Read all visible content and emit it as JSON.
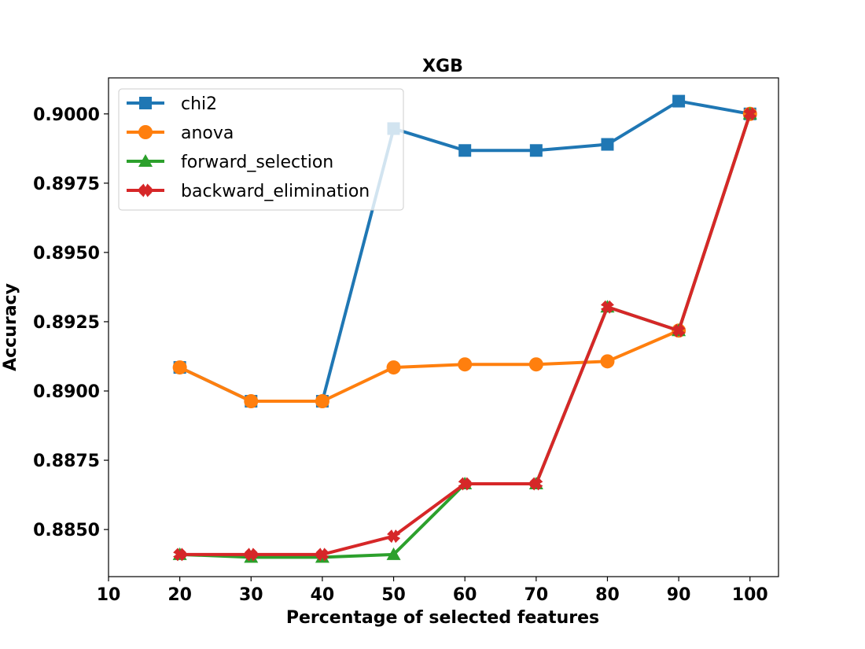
{
  "chart_data": {
    "type": "line",
    "title": "XGB",
    "xlabel": "Percentage of selected features",
    "ylabel": "Accuracy",
    "xlim": [
      10,
      104
    ],
    "ylim": [
      0.8833,
      0.9013
    ],
    "xticks": [
      10,
      20,
      30,
      40,
      50,
      60,
      70,
      80,
      90,
      100
    ],
    "xtick_labels": [
      "10",
      "20",
      "30",
      "40",
      "50",
      "60",
      "70",
      "80",
      "90",
      "100"
    ],
    "yticks": [
      0.885,
      0.8875,
      0.89,
      0.8925,
      0.895,
      0.8975,
      0.9
    ],
    "ytick_labels": [
      "0.8850",
      "0.8875",
      "0.8900",
      "0.8925",
      "0.8950",
      "0.8975",
      "0.9000"
    ],
    "grid": false,
    "legend_position": "top-left",
    "x": [
      20,
      30,
      40,
      50,
      60,
      70,
      80,
      90,
      100
    ],
    "series": [
      {
        "name": "chi2",
        "color": "#1f77b4",
        "marker": "square",
        "values": [
          0.89085,
          0.88963,
          0.88963,
          0.89947,
          0.89868,
          0.89868,
          0.8989,
          0.90046,
          0.9
        ]
      },
      {
        "name": "anova",
        "color": "#ff7f0e",
        "marker": "circle",
        "values": [
          0.89085,
          0.88963,
          0.88963,
          0.89085,
          0.89096,
          0.89096,
          0.89107,
          0.89218,
          0.9
        ]
      },
      {
        "name": "forward_selection",
        "color": "#2ca02c",
        "marker": "triangle",
        "values": [
          0.8841,
          0.884,
          0.884,
          0.8841,
          0.88665,
          0.88665,
          0.89303,
          0.89218,
          0.9
        ]
      },
      {
        "name": "backward_elimination",
        "color": "#d62728",
        "marker": "x",
        "values": [
          0.8841,
          0.8841,
          0.8841,
          0.88476,
          0.88665,
          0.88665,
          0.89303,
          0.89218,
          0.9
        ]
      }
    ]
  }
}
